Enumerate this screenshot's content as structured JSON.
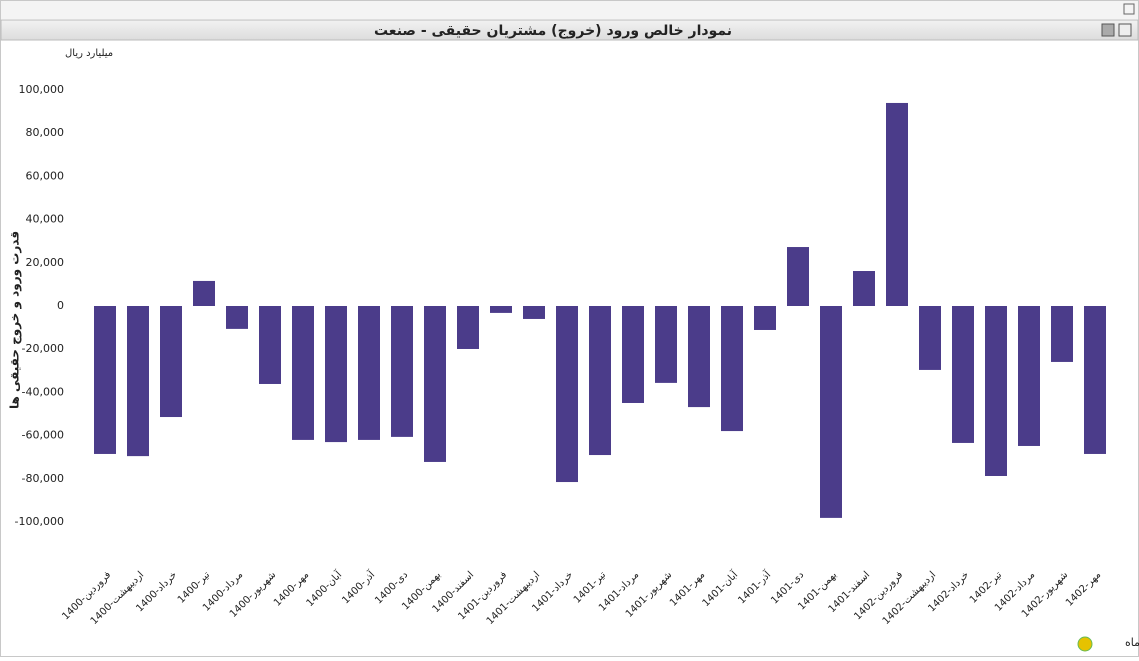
{
  "chart_data": {
    "type": "bar",
    "title": "نمودار خالص ورود (خروج) مشتریان حقیقی - صنعت",
    "unit_label": "میلیارد ریال",
    "y_label": "قدرت ورود و خروج حقیقی ها",
    "x_label": "ماه",
    "color": "#4b3c8a",
    "categories": [
      "1400-فروردین",
      "1400-اردیبهشت",
      "1400-خرداد",
      "1400-تیر",
      "1400-مرداد",
      "1400-شهریور",
      "1400-مهر",
      "1400-آبان",
      "1400-آذر",
      "1400-دی",
      "1400-بهمن",
      "1400-اسفند",
      "1401-فروردین",
      "1401-اردیبهشت",
      "1401-خرداد",
      "1401-تیر",
      "1401-مرداد",
      "1401-شهریور",
      "1401-مهر",
      "1401-آبان",
      "1401-آذر",
      "1401-دی",
      "1401-بهمن",
      "1401-اسفند",
      "1402-فروردین",
      "1402-اردیبهشت",
      "1402-خرداد",
      "1402-تیر",
      "1402-مرداد",
      "1402-شهریور",
      "1402-مهر"
    ],
    "values": [
      -68500,
      -69500,
      -51400,
      11600,
      -10600,
      -36100,
      -62000,
      -63000,
      -62000,
      -60600,
      -72200,
      -19900,
      -3200,
      -6000,
      -81500,
      -69000,
      -44900,
      -35600,
      -46800,
      -57900,
      -11100,
      27300,
      -98100,
      16200,
      94000,
      -29600,
      -63400,
      -78700,
      -64800,
      -25900,
      -68500
    ],
    "ylim": [
      -110000,
      110000
    ],
    "yticks": [
      {
        "value": -100000,
        "label": "-100,000"
      },
      {
        "value": -80000,
        "label": "-80,000"
      },
      {
        "value": -60000,
        "label": "-60,000"
      },
      {
        "value": -40000,
        "label": "-40,000"
      },
      {
        "value": -20000,
        "label": "-20,000"
      },
      0,
      {
        "value": 20000,
        "label": "20,000"
      },
      {
        "value": 40000,
        "label": "40,000"
      },
      {
        "value": 60000,
        "label": "60,000"
      },
      {
        "value": 80000,
        "label": "80,000"
      },
      {
        "value": 100000,
        "label": "100,000"
      }
    ],
    "grid": false
  }
}
